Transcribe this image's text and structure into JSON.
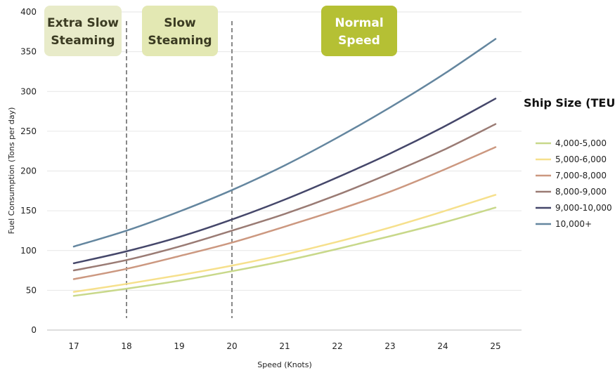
{
  "chart_data": {
    "type": "line",
    "x": [
      17,
      18,
      19,
      20,
      21,
      22,
      23,
      24,
      25
    ],
    "xlabel": "Speed  (Knots)",
    "ylabel": "Fuel Consumption  (Tons per day)",
    "ylim": [
      0,
      400
    ],
    "xlim": [
      17,
      25
    ],
    "yticks": [
      0,
      50,
      100,
      150,
      200,
      250,
      300,
      350,
      400
    ],
    "xticks": [
      17,
      18,
      19,
      20,
      21,
      22,
      23,
      24,
      25
    ],
    "grid": "horizontal",
    "legend_title": "Ship Size (TEU)",
    "legend_position": "right",
    "series": [
      {
        "name": "4,000-5,000",
        "color": "#c8d88a",
        "values": [
          43,
          52,
          62,
          74,
          87,
          102,
          118,
          135,
          154
        ]
      },
      {
        "name": "5,000-6,000",
        "color": "#f6e08c",
        "values": [
          48,
          58,
          69,
          81,
          95,
          111,
          129,
          149,
          170
        ]
      },
      {
        "name": "7,000-8,000",
        "color": "#cc9880",
        "values": [
          64,
          77,
          93,
          110,
          130,
          151,
          174,
          201,
          230
        ]
      },
      {
        "name": "8,000-9,000",
        "color": "#9a7b74",
        "values": [
          75,
          88,
          105,
          125,
          146,
          170,
          197,
          226,
          259
        ]
      },
      {
        "name": "9,000-10,000",
        "color": "#45476a",
        "values": [
          84,
          99,
          117,
          139,
          164,
          192,
          222,
          255,
          291
        ]
      },
      {
        "name": "10,000+",
        "color": "#64869f",
        "values": [
          105,
          125,
          149,
          176,
          207,
          242,
          280,
          321,
          366
        ]
      }
    ],
    "dividers": [
      18,
      20
    ],
    "zones": [
      {
        "lines": [
          "Extra Slow",
          "Steaming"
        ],
        "bg": "#e8ebc9",
        "fg": "#3b3b22"
      },
      {
        "lines": [
          "Slow",
          "Steaming"
        ],
        "bg": "#e3e8b3",
        "fg": "#3b3b22"
      },
      {
        "lines": [
          "Normal",
          "Speed"
        ],
        "bg": "#b5c034",
        "fg": "#ffffff"
      }
    ]
  }
}
